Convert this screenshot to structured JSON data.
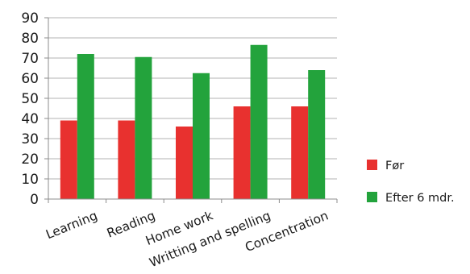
{
  "chart_data": {
    "type": "bar",
    "categories": [
      "Learning",
      "Reading",
      "Home work",
      "Writting and spelling",
      "Concentration"
    ],
    "series": [
      {
        "name": "Før",
        "values": [
          39,
          39,
          36,
          46,
          46
        ],
        "color": "#e8312f"
      },
      {
        "name": "Efter 6 mdr.",
        "values": [
          72,
          70.5,
          62.5,
          76.5,
          64
        ],
        "color": "#23a33c"
      }
    ],
    "ylim": [
      0,
      90
    ],
    "yticks": [
      0,
      10,
      20,
      30,
      40,
      50,
      60,
      70,
      80,
      90
    ],
    "grid": true,
    "legend_position": "right"
  }
}
